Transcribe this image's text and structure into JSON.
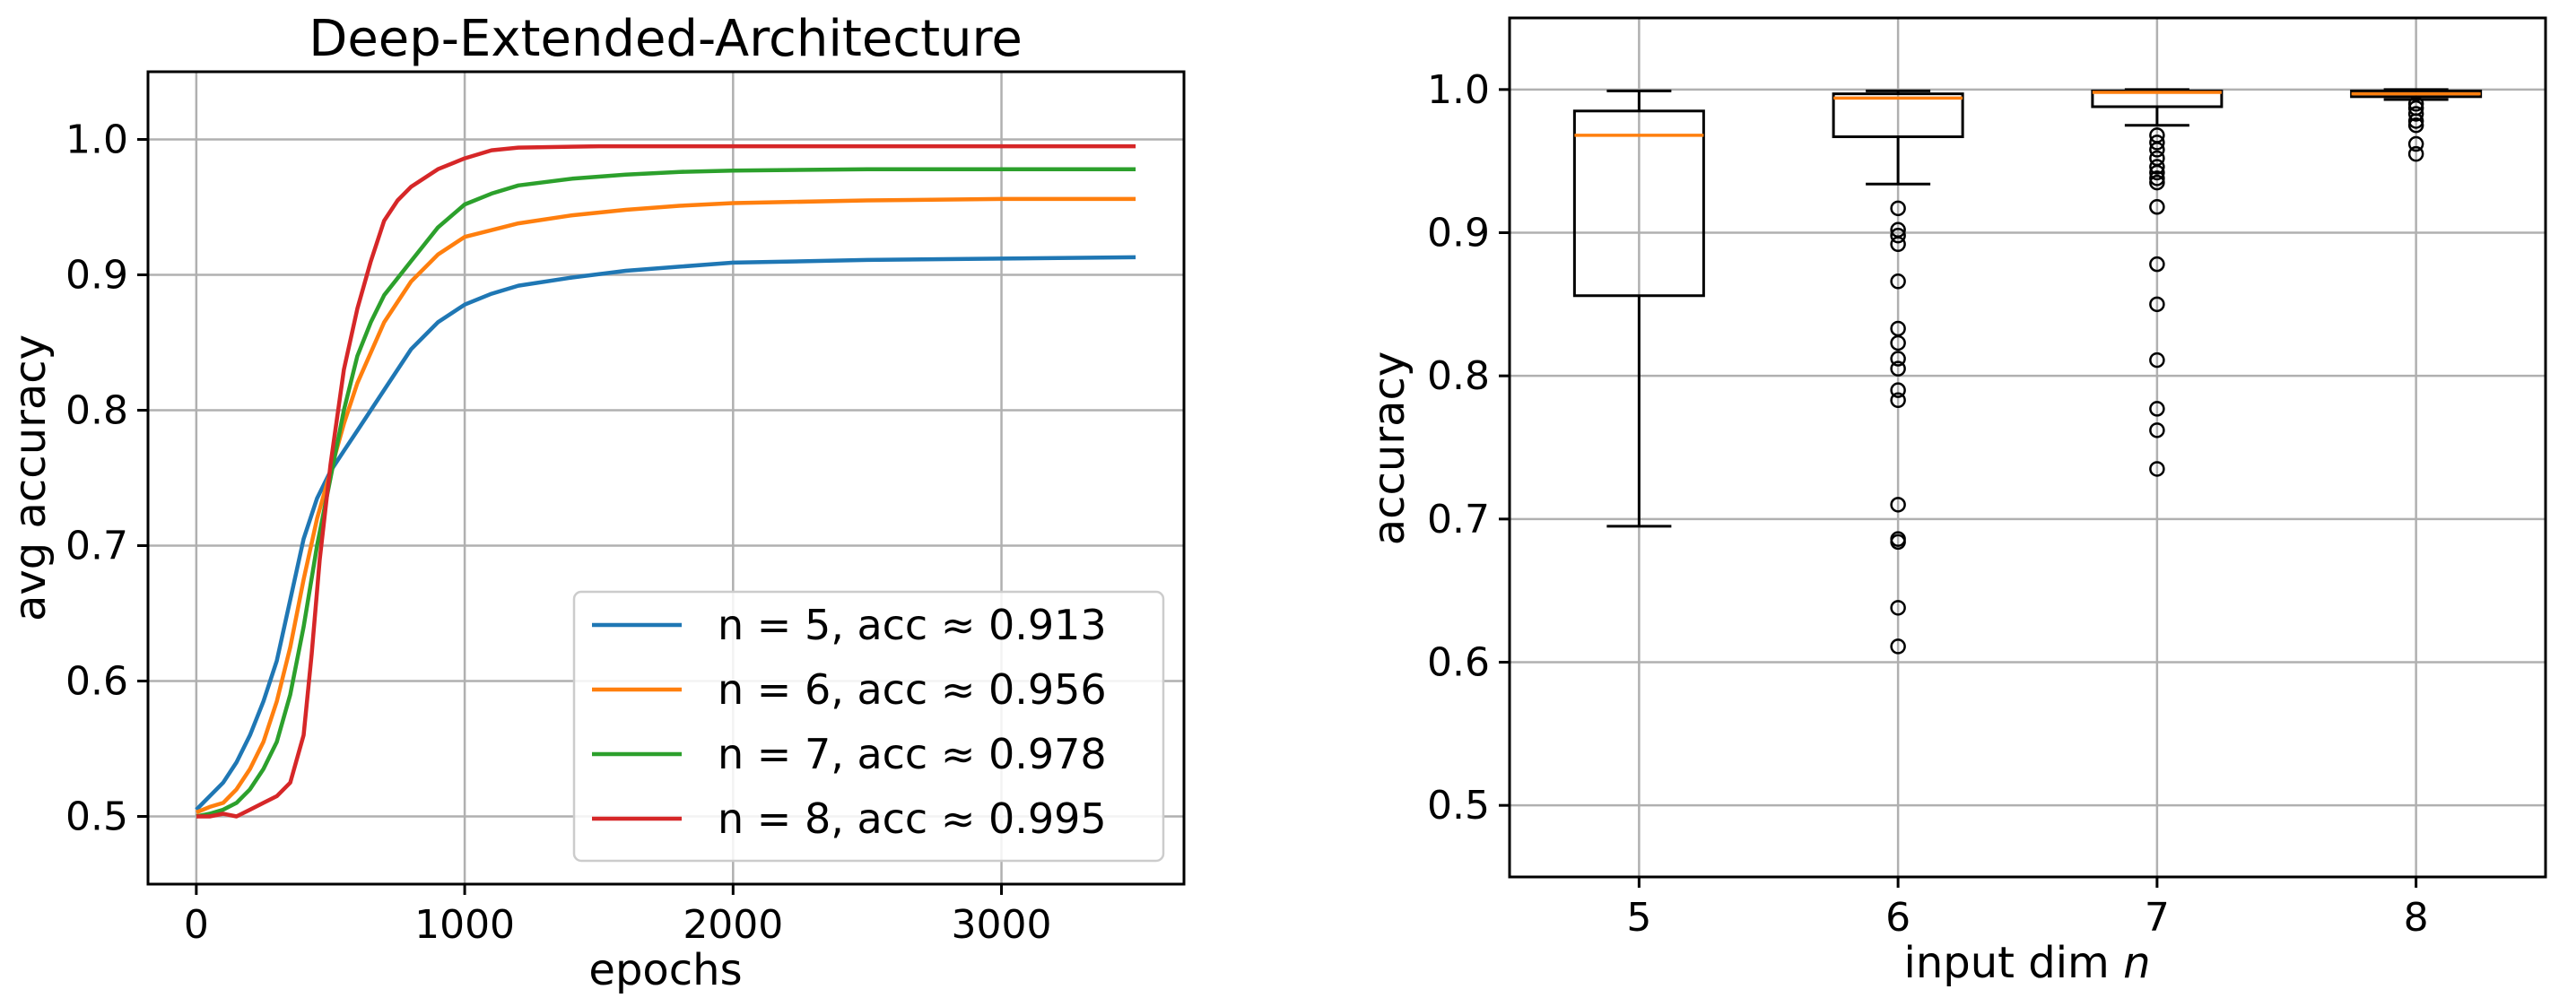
{
  "chart_data": [
    {
      "type": "line",
      "title": "Deep-Extended-Architecture",
      "xlabel": "epochs",
      "ylabel": "avg accuracy",
      "xlim": [
        -180,
        3680
      ],
      "ylim": [
        0.45,
        1.05
      ],
      "xticks": [
        0,
        1000,
        2000,
        3000
      ],
      "xtick_labels": [
        "0",
        "1000",
        "2000",
        "3000"
      ],
      "yticks": [
        0.5,
        0.6,
        0.7,
        0.8,
        0.9,
        1.0
      ],
      "ytick_labels": [
        "0.5",
        "0.6",
        "0.7",
        "0.8",
        "0.9",
        "1.0"
      ],
      "grid": true,
      "legend_position": "lower-right",
      "series": [
        {
          "name": "n = 5, acc ≈ 0.913",
          "color": "#1f77b4",
          "x": [
            0,
            50,
            100,
            150,
            200,
            250,
            300,
            350,
            400,
            450,
            500,
            550,
            600,
            700,
            800,
            900,
            1000,
            1100,
            1200,
            1400,
            1600,
            1800,
            2000,
            2500,
            3000,
            3500
          ],
          "y": [
            0.505,
            0.515,
            0.525,
            0.54,
            0.56,
            0.585,
            0.615,
            0.66,
            0.705,
            0.735,
            0.755,
            0.77,
            0.785,
            0.815,
            0.845,
            0.865,
            0.878,
            0.886,
            0.892,
            0.898,
            0.903,
            0.906,
            0.909,
            0.911,
            0.912,
            0.913
          ]
        },
        {
          "name": "n = 6, acc ≈ 0.956",
          "color": "#ff7f0e",
          "x": [
            0,
            50,
            100,
            150,
            200,
            250,
            300,
            350,
            400,
            450,
            500,
            550,
            600,
            700,
            800,
            900,
            1000,
            1200,
            1400,
            1600,
            1800,
            2000,
            2500,
            3000,
            3500
          ],
          "y": [
            0.503,
            0.507,
            0.51,
            0.52,
            0.535,
            0.555,
            0.585,
            0.625,
            0.675,
            0.72,
            0.755,
            0.79,
            0.82,
            0.865,
            0.895,
            0.915,
            0.928,
            0.938,
            0.944,
            0.948,
            0.951,
            0.953,
            0.955,
            0.956,
            0.956
          ]
        },
        {
          "name": "n = 7, acc ≈ 0.978",
          "color": "#2ca02c",
          "x": [
            0,
            50,
            100,
            150,
            200,
            250,
            300,
            350,
            400,
            450,
            500,
            550,
            600,
            650,
            700,
            800,
            900,
            1000,
            1100,
            1200,
            1400,
            1600,
            1800,
            2000,
            2500,
            3000,
            3500
          ],
          "y": [
            0.5,
            0.502,
            0.505,
            0.51,
            0.52,
            0.535,
            0.555,
            0.59,
            0.64,
            0.7,
            0.75,
            0.8,
            0.84,
            0.865,
            0.885,
            0.91,
            0.935,
            0.952,
            0.96,
            0.966,
            0.971,
            0.974,
            0.976,
            0.977,
            0.978,
            0.978,
            0.978
          ]
        },
        {
          "name": "n = 8, acc ≈ 0.995",
          "color": "#d62728",
          "x": [
            0,
            50,
            100,
            150,
            200,
            250,
            300,
            350,
            400,
            430,
            460,
            500,
            550,
            600,
            650,
            700,
            750,
            800,
            900,
            1000,
            1100,
            1200,
            1500,
            2000,
            2500,
            3000,
            3500
          ],
          "y": [
            0.5,
            0.5,
            0.502,
            0.5,
            0.505,
            0.51,
            0.515,
            0.525,
            0.56,
            0.62,
            0.69,
            0.76,
            0.83,
            0.875,
            0.91,
            0.94,
            0.955,
            0.965,
            0.978,
            0.986,
            0.992,
            0.994,
            0.995,
            0.995,
            0.995,
            0.995,
            0.995
          ]
        }
      ]
    },
    {
      "type": "box",
      "title": "",
      "xlabel": "input dim",
      "xlabel_var": "n",
      "ylabel": "accuracy",
      "ylim": [
        0.45,
        1.05
      ],
      "yticks": [
        0.5,
        0.6,
        0.7,
        0.8,
        0.9,
        1.0
      ],
      "ytick_labels": [
        "0.5",
        "0.6",
        "0.7",
        "0.8",
        "0.9",
        "1.0"
      ],
      "categories": [
        "5",
        "6",
        "7",
        "8"
      ],
      "grid": true,
      "median_color": "#ff7f0e",
      "boxes": [
        {
          "label": "5",
          "whisker_low": 0.695,
          "q1": 0.856,
          "median": 0.968,
          "q3": 0.985,
          "whisker_high": 0.999,
          "outliers": []
        },
        {
          "label": "6",
          "whisker_low": 0.934,
          "q1": 0.967,
          "median": 0.994,
          "q3": 0.997,
          "whisker_high": 0.999,
          "outliers": [
            0.917,
            0.902,
            0.898,
            0.892,
            0.866,
            0.833,
            0.823,
            0.812,
            0.805,
            0.79,
            0.783,
            0.71,
            0.686,
            0.684,
            0.638,
            0.611
          ]
        },
        {
          "label": "7",
          "whisker_low": 0.975,
          "q1": 0.988,
          "median": 0.998,
          "q3": 0.999,
          "whisker_high": 1.0,
          "outliers": [
            0.968,
            0.963,
            0.958,
            0.952,
            0.946,
            0.942,
            0.938,
            0.935,
            0.918,
            0.878,
            0.85,
            0.811,
            0.777,
            0.762,
            0.735
          ]
        },
        {
          "label": "8",
          "whisker_low": 0.993,
          "q1": 0.995,
          "median": 0.997,
          "q3": 0.999,
          "whisker_high": 1.0,
          "outliers": [
            0.99,
            0.987,
            0.983,
            0.978,
            0.975,
            0.962,
            0.955
          ]
        }
      ]
    }
  ]
}
